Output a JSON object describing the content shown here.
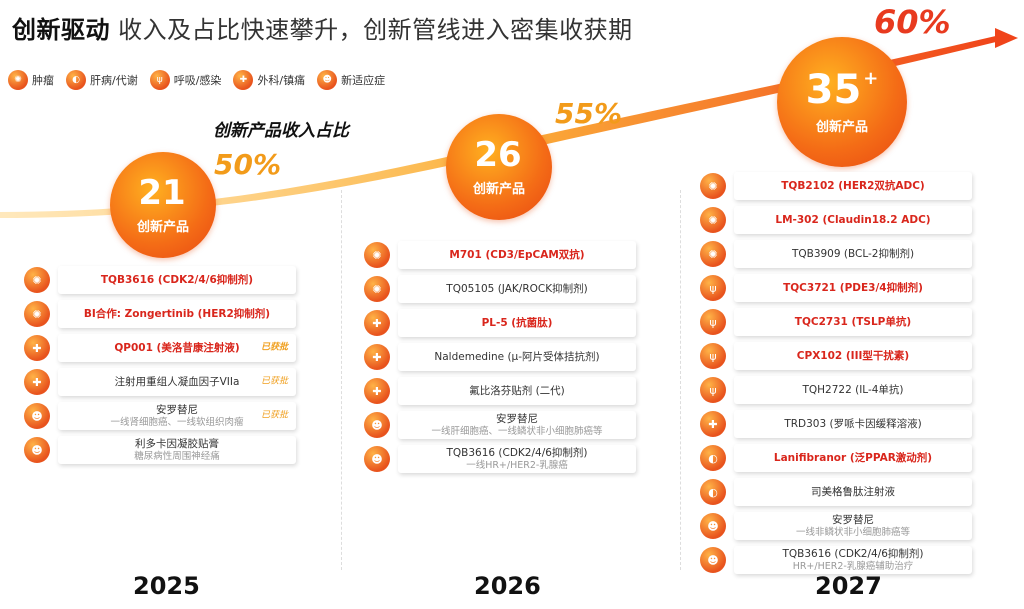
{
  "title": {
    "bold": "创新驱动",
    "rest": "收入及占比快速攀升，创新管线进入密集收获期"
  },
  "legend": [
    {
      "icon": "tumor-icon",
      "glyph": "✺",
      "label": "肿瘤"
    },
    {
      "icon": "liver-icon",
      "glyph": "◐",
      "label": "肝病/代谢"
    },
    {
      "icon": "lung-icon",
      "glyph": "ψ",
      "label": "呼吸/感染"
    },
    {
      "icon": "bandage-icon",
      "glyph": "✚",
      "label": "外科/镇痛"
    },
    {
      "icon": "person-plus-icon",
      "glyph": "☻",
      "label": "新适应症"
    }
  ],
  "ratio_title": "创新产品收入占比",
  "colors": {
    "accent": "#f46b16",
    "red": "#d9261c",
    "pct": "#f29b1a"
  },
  "chart_data": {
    "type": "line",
    "x": [
      "2025",
      "2026",
      "2027"
    ],
    "values": [
      50,
      55,
      60
    ],
    "value_labels": [
      "50%",
      "55%",
      "60%"
    ]
  },
  "years": [
    {
      "year": "2025",
      "count": "21",
      "plus": "",
      "label": "创新产品",
      "items": [
        {
          "icon": "tumor-icon",
          "glyph": "✺",
          "name": "TQB3616 (CDK2/4/6抑制剂)",
          "sub": "",
          "badge": "",
          "red": true
        },
        {
          "icon": "tumor-icon",
          "glyph": "✺",
          "name": "BI合作: Zongertinib (HER2抑制剂)",
          "sub": "",
          "badge": "",
          "red": true
        },
        {
          "icon": "bandage-icon",
          "glyph": "✚",
          "name": "QP001 (美洛昔康注射液)",
          "sub": "",
          "badge": "已获批",
          "red": true
        },
        {
          "icon": "bandage-icon",
          "glyph": "✚",
          "name": "注射用重组人凝血因子VIIa",
          "sub": "",
          "badge": "已获批",
          "red": false
        },
        {
          "icon": "person-plus-icon",
          "glyph": "☻",
          "name": "安罗替尼",
          "sub": "一线肾细胞癌、一线软组织肉瘤",
          "badge": "已获批",
          "red": false
        },
        {
          "icon": "person-plus-icon",
          "glyph": "☻",
          "name": "利多卡因凝胶贴膏",
          "sub": "糖尿病性周围神经痛",
          "badge": "",
          "red": false
        }
      ]
    },
    {
      "year": "2026",
      "count": "26",
      "plus": "",
      "label": "创新产品",
      "items": [
        {
          "icon": "tumor-icon",
          "glyph": "✺",
          "name": "M701 (CD3/EpCAM双抗)",
          "sub": "",
          "badge": "",
          "red": true
        },
        {
          "icon": "tumor-icon",
          "glyph": "✺",
          "name": "TQ05105 (JAK/ROCK抑制剂)",
          "sub": "",
          "badge": "",
          "red": false
        },
        {
          "icon": "bandage-icon",
          "glyph": "✚",
          "name": "PL-5 (抗菌肽)",
          "sub": "",
          "badge": "",
          "red": true
        },
        {
          "icon": "bandage-icon",
          "glyph": "✚",
          "name": "Naldemedine (μ-阿片受体拮抗剂)",
          "sub": "",
          "badge": "",
          "red": false
        },
        {
          "icon": "bandage-icon",
          "glyph": "✚",
          "name": "氟比洛芬贴剂 (二代)",
          "sub": "",
          "badge": "",
          "red": false
        },
        {
          "icon": "person-plus-icon",
          "glyph": "☻",
          "name": "安罗替尼",
          "sub": "一线肝细胞癌、一线鳞状非小细胞肺癌等",
          "badge": "",
          "red": false
        },
        {
          "icon": "person-plus-icon",
          "glyph": "☻",
          "name": "TQB3616 (CDK2/4/6抑制剂)",
          "sub": "一线HR+/HER2-乳腺癌",
          "badge": "",
          "red": false
        }
      ]
    },
    {
      "year": "2027",
      "count": "35",
      "plus": "+",
      "label": "创新产品",
      "items": [
        {
          "icon": "tumor-icon",
          "glyph": "✺",
          "name": "TQB2102 (HER2双抗ADC)",
          "sub": "",
          "badge": "",
          "red": true
        },
        {
          "icon": "tumor-icon",
          "glyph": "✺",
          "name": "LM-302 (Claudin18.2 ADC)",
          "sub": "",
          "badge": "",
          "red": true
        },
        {
          "icon": "tumor-icon",
          "glyph": "✺",
          "name": "TQB3909 (BCL-2抑制剂)",
          "sub": "",
          "badge": "",
          "red": false
        },
        {
          "icon": "lung-icon",
          "glyph": "ψ",
          "name": "TQC3721 (PDE3/4抑制剂)",
          "sub": "",
          "badge": "",
          "red": true
        },
        {
          "icon": "lung-icon",
          "glyph": "ψ",
          "name": "TQC2731 (TSLP单抗)",
          "sub": "",
          "badge": "",
          "red": true
        },
        {
          "icon": "lung-icon",
          "glyph": "ψ",
          "name": "CPX102 (III型干扰素)",
          "sub": "",
          "badge": "",
          "red": true
        },
        {
          "icon": "lung-icon",
          "glyph": "ψ",
          "name": "TQH2722 (IL-4单抗)",
          "sub": "",
          "badge": "",
          "red": false
        },
        {
          "icon": "bandage-icon",
          "glyph": "✚",
          "name": "TRD303 (罗哌卡因缓释溶液)",
          "sub": "",
          "badge": "",
          "red": false
        },
        {
          "icon": "liver-icon",
          "glyph": "◐",
          "name": "Lanifibranor (泛PPAR激动剂)",
          "sub": "",
          "badge": "",
          "red": true
        },
        {
          "icon": "liver-icon",
          "glyph": "◐",
          "name": "司美格鲁肽注射液",
          "sub": "",
          "badge": "",
          "red": false
        },
        {
          "icon": "person-plus-icon",
          "glyph": "☻",
          "name": "安罗替尼",
          "sub": "一线非鳞状非小细胞肺癌等",
          "badge": "",
          "red": false
        },
        {
          "icon": "person-plus-icon",
          "glyph": "☻",
          "name": "TQB3616 (CDK2/4/6抑制剂)",
          "sub": "HR+/HER2-乳腺癌辅助治疗",
          "badge": "",
          "red": false
        }
      ]
    }
  ]
}
